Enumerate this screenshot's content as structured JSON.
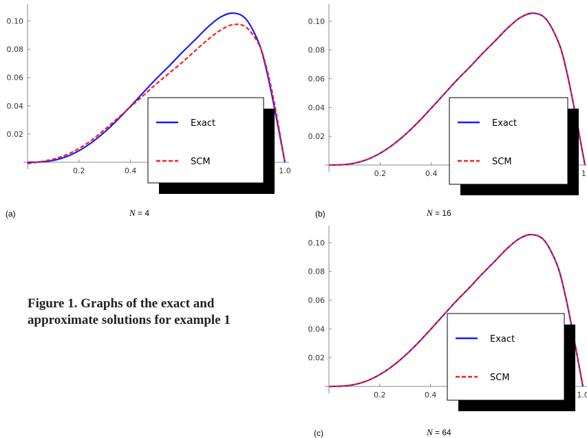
{
  "caption": {
    "line1": "Figure 1. Graphs of the exact and",
    "line2": "approximate solutions for example 1"
  },
  "chart_data": [
    {
      "type": "line",
      "panel_label": "(a)",
      "n_label_var": "N",
      "n_label_value": "= 4",
      "legend_labels": [
        "Exact",
        "SCM"
      ],
      "xlim": [
        0,
        1.0
      ],
      "ylim": [
        -0.003,
        0.11
      ],
      "x_ticks": [
        0.2,
        0.4,
        0.6,
        0.8,
        1.0
      ],
      "x_tick_labels": [
        "0.2",
        "0.4",
        "",
        "",
        "1.0"
      ],
      "y_ticks": [
        0.02,
        0.04,
        0.06,
        0.08,
        0.1
      ],
      "y_tick_labels": [
        "0.02",
        "0.04",
        "0.06",
        "0.08",
        "0.10"
      ],
      "series": [
        {
          "name": "Exact",
          "color": "#1a1aff",
          "style": "solid",
          "x": [
            0.0,
            0.05,
            0.1,
            0.15,
            0.2,
            0.25,
            0.3,
            0.35,
            0.4,
            0.45,
            0.5,
            0.55,
            0.6,
            0.65,
            0.7,
            0.75,
            0.8,
            0.85,
            0.9,
            0.93,
            0.96,
            1.0
          ],
          "y": [
            0.0,
            0.0002,
            0.0013,
            0.0039,
            0.0082,
            0.0141,
            0.0215,
            0.0301,
            0.0396,
            0.0494,
            0.0591,
            0.0681,
            0.0776,
            0.0865,
            0.0956,
            0.1028,
            0.1056,
            0.1011,
            0.0839,
            0.064,
            0.038,
            0.0
          ]
        },
        {
          "name": "SCM",
          "color": "#ff1a1a",
          "style": "dashed",
          "x": [
            0.0,
            0.05,
            0.1,
            0.15,
            0.2,
            0.25,
            0.3,
            0.35,
            0.4,
            0.45,
            0.5,
            0.55,
            0.6,
            0.65,
            0.7,
            0.75,
            0.8,
            0.85,
            0.9,
            0.93,
            0.96,
            1.0
          ],
          "y": [
            -0.001,
            0.0004,
            0.0022,
            0.0052,
            0.0098,
            0.0158,
            0.0232,
            0.0311,
            0.0392,
            0.0473,
            0.0554,
            0.063,
            0.0706,
            0.0787,
            0.0867,
            0.0935,
            0.0975,
            0.0955,
            0.083,
            0.066,
            0.041,
            0.0
          ]
        }
      ]
    },
    {
      "type": "line",
      "panel_label": "(b)",
      "n_label_var": "N",
      "n_label_value": "= 16",
      "legend_labels": [
        "Exact",
        "SCM"
      ],
      "xlim": [
        0,
        1.0
      ],
      "ylim": [
        -0.003,
        0.11
      ],
      "x_ticks": [
        0.2,
        0.4,
        0.6,
        0.8,
        1.0
      ],
      "x_tick_labels": [
        "0.2",
        "0.4",
        "",
        "",
        "1."
      ],
      "y_ticks": [
        0.02,
        0.04,
        0.06,
        0.08,
        0.1
      ],
      "y_tick_labels": [
        "0.02",
        "0.04",
        "0.06",
        "0.08",
        "0.10"
      ],
      "series": [
        {
          "name": "Exact",
          "color": "#1a1aff",
          "style": "solid",
          "x": [
            0.0,
            0.05,
            0.1,
            0.15,
            0.2,
            0.25,
            0.3,
            0.35,
            0.4,
            0.45,
            0.5,
            0.55,
            0.6,
            0.65,
            0.7,
            0.75,
            0.8,
            0.85,
            0.9,
            0.93,
            0.96,
            1.0
          ],
          "y": [
            0.0,
            0.0002,
            0.0013,
            0.0039,
            0.0082,
            0.0141,
            0.0215,
            0.0301,
            0.0396,
            0.0494,
            0.0591,
            0.0681,
            0.0776,
            0.0865,
            0.0956,
            0.1028,
            0.1056,
            0.1011,
            0.0839,
            0.064,
            0.038,
            0.0
          ]
        },
        {
          "name": "SCM",
          "color": "#ff1a1a",
          "style": "dashed",
          "x": [
            0.0,
            0.05,
            0.1,
            0.15,
            0.2,
            0.25,
            0.3,
            0.35,
            0.4,
            0.45,
            0.5,
            0.55,
            0.6,
            0.65,
            0.7,
            0.75,
            0.8,
            0.85,
            0.9,
            0.93,
            0.96,
            1.0
          ],
          "y": [
            0.0,
            0.0002,
            0.0013,
            0.0039,
            0.0082,
            0.0141,
            0.0215,
            0.0301,
            0.0396,
            0.0494,
            0.0591,
            0.0681,
            0.0776,
            0.0865,
            0.0956,
            0.1028,
            0.1056,
            0.1011,
            0.0839,
            0.064,
            0.038,
            0.0
          ]
        }
      ]
    },
    {
      "type": "line",
      "panel_label": "(c)",
      "n_label_var": "N",
      "n_label_value": "= 64",
      "legend_labels": [
        "Exact",
        "SCM"
      ],
      "xlim": [
        0,
        1.0
      ],
      "ylim": [
        -0.003,
        0.11
      ],
      "x_ticks": [
        0.2,
        0.4,
        0.6,
        0.8,
        1.0
      ],
      "x_tick_labels": [
        "0.2",
        "0.4",
        "",
        "",
        "1.0"
      ],
      "y_ticks": [
        0.02,
        0.04,
        0.06,
        0.08,
        0.1
      ],
      "y_tick_labels": [
        "0.02",
        "0.04",
        "0.06",
        "0.08",
        "0.10"
      ],
      "series": [
        {
          "name": "Exact",
          "color": "#1a1aff",
          "style": "solid",
          "x": [
            0.0,
            0.05,
            0.1,
            0.15,
            0.2,
            0.25,
            0.3,
            0.35,
            0.4,
            0.45,
            0.5,
            0.55,
            0.6,
            0.65,
            0.7,
            0.75,
            0.8,
            0.85,
            0.9,
            0.93,
            0.96,
            1.0
          ],
          "y": [
            0.0,
            0.0002,
            0.0013,
            0.0039,
            0.0082,
            0.0141,
            0.0215,
            0.0301,
            0.0396,
            0.0494,
            0.0591,
            0.0681,
            0.0776,
            0.0865,
            0.0956,
            0.1028,
            0.1056,
            0.1011,
            0.0839,
            0.064,
            0.038,
            0.0
          ]
        },
        {
          "name": "SCM",
          "color": "#ff1a1a",
          "style": "dashed",
          "x": [
            0.0,
            0.05,
            0.1,
            0.15,
            0.2,
            0.25,
            0.3,
            0.35,
            0.4,
            0.45,
            0.5,
            0.55,
            0.6,
            0.65,
            0.7,
            0.75,
            0.8,
            0.85,
            0.9,
            0.93,
            0.96,
            1.0
          ],
          "y": [
            0.0,
            0.0002,
            0.0013,
            0.0039,
            0.0082,
            0.0141,
            0.0215,
            0.0301,
            0.0396,
            0.0494,
            0.0591,
            0.0681,
            0.0776,
            0.0865,
            0.0956,
            0.1028,
            0.1056,
            0.1011,
            0.0839,
            0.064,
            0.038,
            0.0
          ]
        }
      ]
    }
  ]
}
